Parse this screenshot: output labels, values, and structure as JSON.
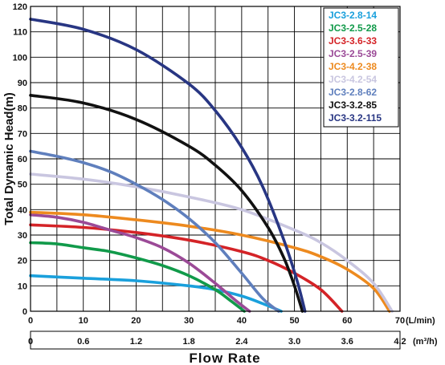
{
  "chart_data": {
    "type": "line",
    "title": "",
    "xlabel": "Flow Rate",
    "ylabel": "Total Dynamic Head(m)",
    "x_unit_primary": "(L/min)",
    "x_unit_secondary": "(m³/h)",
    "xlim": [
      0,
      70
    ],
    "ylim": [
      0,
      120
    ],
    "grid": true,
    "legend_position": "top-right",
    "x_ticks_primary": [
      "0",
      "10",
      "20",
      "30",
      "40",
      "50",
      "60",
      "70"
    ],
    "x_ticks_secondary": [
      "0",
      "0.6",
      "1.2",
      "1.8",
      "2.4",
      "3.0",
      "3.6",
      "4.2"
    ],
    "y_ticks": [
      "0",
      "10",
      "20",
      "30",
      "40",
      "50",
      "60",
      "70",
      "80",
      "90",
      "100",
      "110",
      "120"
    ],
    "series": [
      {
        "name": "JC3-2.8-14",
        "color": "#1aa0dc",
        "x": [
          0,
          10,
          20,
          30,
          35,
          40,
          44,
          47.5
        ],
        "y": [
          14,
          13,
          12,
          10,
          8.5,
          6,
          3,
          0
        ]
      },
      {
        "name": "JC3-2.5-28",
        "color": "#119a4a",
        "x": [
          0,
          5,
          10,
          15,
          20,
          25,
          30,
          35,
          38,
          40.5
        ],
        "y": [
          27,
          26.5,
          25,
          23.5,
          21,
          18,
          14,
          8.5,
          4,
          0
        ]
      },
      {
        "name": "JC3-3.6-33",
        "color": "#d42327",
        "x": [
          0,
          10,
          20,
          30,
          40,
          45,
          50,
          55,
          59
        ],
        "y": [
          34,
          33,
          31,
          28,
          23.5,
          20,
          15,
          8.5,
          0
        ]
      },
      {
        "name": "JC3-2.5-39",
        "color": "#9b4a97",
        "x": [
          0,
          5,
          10,
          15,
          20,
          25,
          30,
          35,
          39,
          41.5
        ],
        "y": [
          38,
          37,
          35,
          32,
          29,
          25,
          19,
          11,
          4,
          0
        ]
      },
      {
        "name": "JC3-4.2-38",
        "color": "#ed8a1f",
        "x": [
          0,
          10,
          20,
          30,
          40,
          50,
          55,
          60,
          65,
          68
        ],
        "y": [
          39,
          38,
          36,
          33.5,
          30,
          25,
          21.5,
          16.5,
          9,
          0
        ]
      },
      {
        "name": "JC3-4.2-54",
        "color": "#c9c6e0",
        "x": [
          0,
          10,
          20,
          30,
          40,
          50,
          55,
          60,
          65,
          68.5
        ],
        "y": [
          54,
          52,
          49,
          45,
          40,
          32,
          27,
          20,
          11,
          0
        ]
      },
      {
        "name": "JC3-2.8-62",
        "color": "#5f7fbd",
        "x": [
          0,
          5,
          10,
          15,
          20,
          25,
          30,
          35,
          40,
          44,
          47
        ],
        "y": [
          63,
          61,
          58.5,
          55,
          50,
          44,
          36.5,
          27,
          15,
          5,
          0
        ]
      },
      {
        "name": "JC3-3.2-85",
        "color": "#111111",
        "x": [
          0,
          10,
          20,
          30,
          35,
          40,
          45,
          48,
          50,
          51.5
        ],
        "y": [
          85,
          82,
          75.5,
          65,
          57.5,
          47.5,
          33,
          21,
          10,
          0
        ]
      },
      {
        "name": "JC3-3.2-115",
        "color": "#283683",
        "x": [
          0,
          10,
          20,
          30,
          35,
          40,
          44,
          48,
          50.5,
          52
        ],
        "y": [
          115,
          111,
          103,
          89.5,
          79,
          64.5,
          49,
          28,
          12,
          0
        ]
      }
    ]
  }
}
